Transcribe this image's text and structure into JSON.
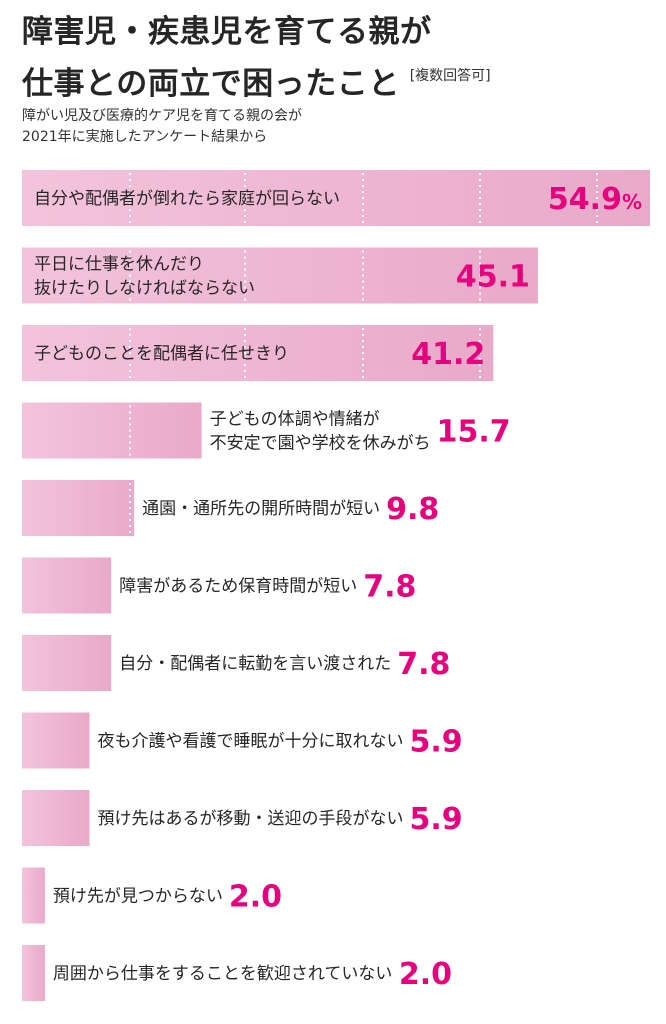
{
  "title": {
    "line1": "障害児・疾患児を育てる親が",
    "line2": "仕事との両立で困ったこと",
    "note": "[複数回答可]"
  },
  "subtitle": {
    "line1": "障がい児及び医療的ケア児を育てる親の会が",
    "line2": "2021年に実施したアンケート結果から"
  },
  "colors": {
    "bar": "#f3c3dc",
    "bar_edge": "#e9a9c9",
    "value": "#e6007e",
    "grid": "#ffffff"
  },
  "chart_data": {
    "type": "bar",
    "orientation": "horizontal",
    "unit": "%",
    "xlim": [
      0,
      54.9
    ],
    "grid": "dotted vertical lines",
    "categories": [
      [
        "自分や配偶者が倒れたら家庭が回らない"
      ],
      [
        "平日に仕事を休んだり",
        "抜けたりしなければならない"
      ],
      [
        "子どものことを配偶者に任せきり"
      ],
      [
        "子どもの体調や情緒が",
        "不安定で園や学校を休みがち"
      ],
      [
        "通園・通所先の開所時間が短い"
      ],
      [
        "障害があるため保育時間が短い"
      ],
      [
        "自分・配偶者に転勤を言い渡された"
      ],
      [
        "夜も介護や看護で睡眠が十分に取れない"
      ],
      [
        "預け先はあるが移動・送迎の手段がない"
      ],
      [
        "預け先が見つからない"
      ],
      [
        "周囲から仕事をすることを歓迎されていない"
      ]
    ],
    "values": [
      54.9,
      45.1,
      41.2,
      15.7,
      9.8,
      7.8,
      7.8,
      5.9,
      5.9,
      2.0,
      2.0
    ],
    "value_labels": [
      "54.9",
      "45.1",
      "41.2",
      "15.7",
      "9.8",
      "7.8",
      "7.8",
      "5.9",
      "5.9",
      "2.0",
      "2.0"
    ]
  }
}
